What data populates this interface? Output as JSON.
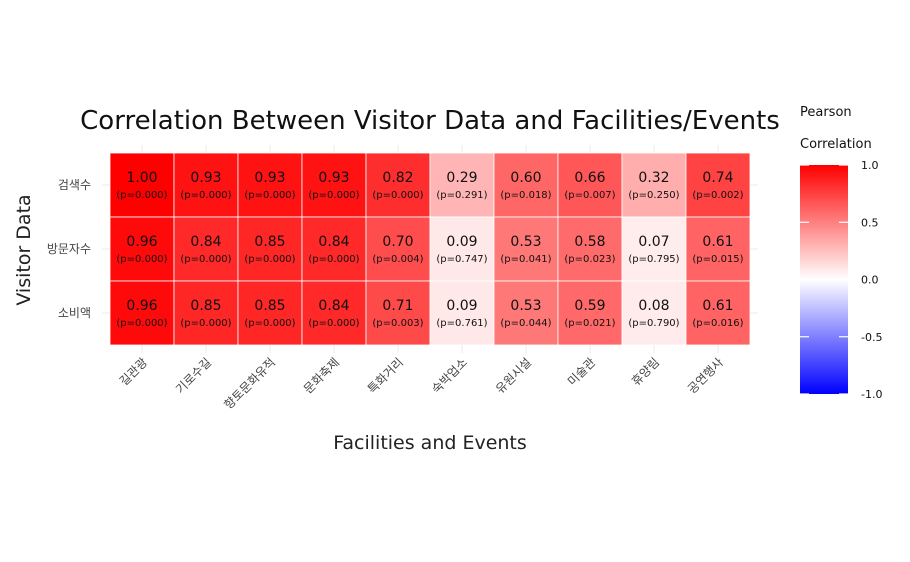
{
  "chart_data": {
    "type": "heatmap",
    "title": "Correlation Between Visitor Data and Facilities/Events",
    "xlabel": "Facilities and Events",
    "ylabel": "Visitor Data",
    "x_categories": [
      "길관광",
      "기로수길",
      "향토문화유적",
      "문화축제",
      "특화거리",
      "숙박업소",
      "유원시설",
      "미술관",
      "휴양림",
      "공연행사"
    ],
    "y_categories": [
      "검색수",
      "방문자수",
      "소비액"
    ],
    "values": [
      [
        1.0,
        0.93,
        0.93,
        0.93,
        0.82,
        0.29,
        0.6,
        0.66,
        0.32,
        0.74
      ],
      [
        0.96,
        0.84,
        0.85,
        0.84,
        0.7,
        0.09,
        0.53,
        0.58,
        0.07,
        0.61
      ],
      [
        0.96,
        0.85,
        0.85,
        0.84,
        0.71,
        0.09,
        0.53,
        0.59,
        0.08,
        0.61
      ]
    ],
    "value_labels": [
      [
        "1.00",
        "0.93",
        "0.93",
        "0.93",
        "0.82",
        "0.29",
        "0.60",
        "0.66",
        "0.32",
        "0.74"
      ],
      [
        "0.96",
        "0.84",
        "0.85",
        "0.84",
        "0.70",
        "0.09",
        "0.53",
        "0.58",
        "0.07",
        "0.61"
      ],
      [
        "0.96",
        "0.85",
        "0.85",
        "0.84",
        "0.71",
        "0.09",
        "0.53",
        "0.59",
        "0.08",
        "0.61"
      ]
    ],
    "p_labels": [
      [
        "(p=0.000)",
        "(p=0.000)",
        "(p=0.000)",
        "(p=0.000)",
        "(p=0.000)",
        "(p=0.291)",
        "(p=0.018)",
        "(p=0.007)",
        "(p=0.250)",
        "(p=0.002)"
      ],
      [
        "(p=0.000)",
        "(p=0.000)",
        "(p=0.000)",
        "(p=0.000)",
        "(p=0.004)",
        "(p=0.747)",
        "(p=0.041)",
        "(p=0.023)",
        "(p=0.795)",
        "(p=0.015)"
      ],
      [
        "(p=0.000)",
        "(p=0.000)",
        "(p=0.000)",
        "(p=0.000)",
        "(p=0.003)",
        "(p=0.761)",
        "(p=0.044)",
        "(p=0.021)",
        "(p=0.790)",
        "(p=0.016)"
      ]
    ],
    "legend": {
      "title_line1": "Pearson",
      "title_line2": "Correlation",
      "ticks": [
        1.0,
        0.5,
        0.0,
        -0.5,
        -1.0
      ],
      "tick_labels": [
        "1.0",
        "0.5",
        "0.0",
        "-0.5",
        "-1.0"
      ],
      "range": [
        -1.0,
        1.0
      ],
      "colors": {
        "low": "#0000ff",
        "mid": "#ffffff",
        "high": "#ff0000"
      },
      "placement": "right"
    },
    "grid": true
  }
}
